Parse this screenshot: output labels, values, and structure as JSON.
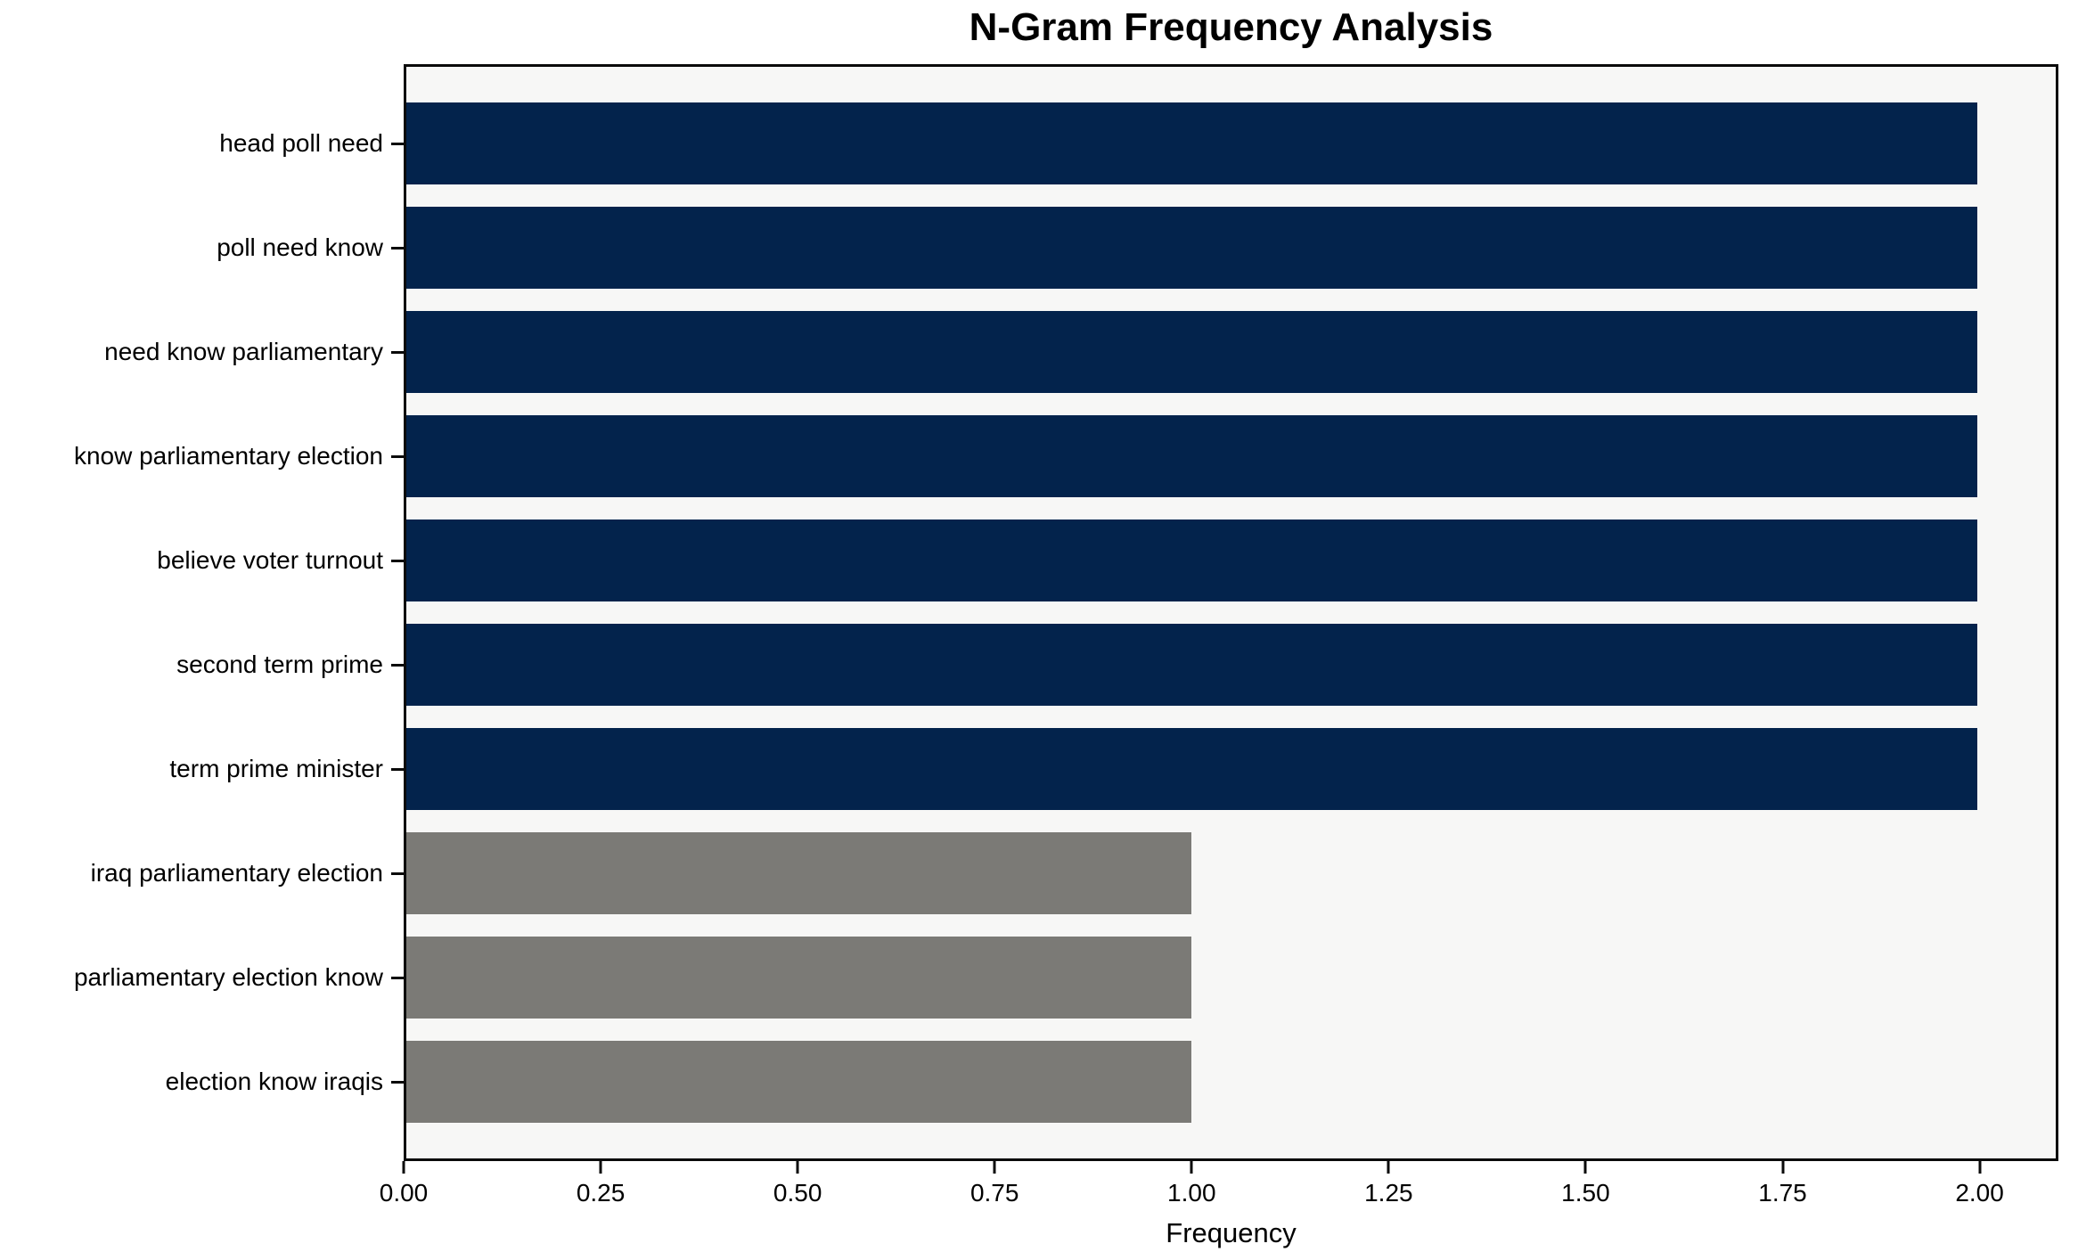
{
  "figure": {
    "background": "#ffffff",
    "plot_background": "#f7f7f6",
    "axis_color": "#0a0a0a"
  },
  "colors": {
    "navy": "#03234c",
    "gray": "#7b7a76"
  },
  "chart_data": {
    "type": "bar",
    "orientation": "horizontal",
    "title": "N-Gram Frequency Analysis",
    "xlabel": "Frequency",
    "ylabel": "",
    "categories": [
      "head poll need",
      "poll need know",
      "need know parliamentary",
      "know parliamentary election",
      "believe voter turnout",
      "second term prime",
      "term prime minister",
      "iraq parliamentary election",
      "parliamentary election know",
      "election know iraqis"
    ],
    "values": [
      2,
      2,
      2,
      2,
      2,
      2,
      2,
      1,
      1,
      1
    ],
    "bar_colors": [
      "#03234c",
      "#03234c",
      "#03234c",
      "#03234c",
      "#03234c",
      "#03234c",
      "#03234c",
      "#7b7a76",
      "#7b7a76",
      "#7b7a76"
    ],
    "xlim": [
      0,
      2.1
    ],
    "xtick_values": [
      0,
      0.25,
      0.5,
      0.75,
      1.0,
      1.25,
      1.5,
      1.75,
      2.0
    ],
    "xtick_labels": [
      "0.00",
      "0.25",
      "0.50",
      "0.75",
      "1.00",
      "1.25",
      "1.50",
      "1.75",
      "2.00"
    ],
    "grid": false,
    "legend": false
  }
}
